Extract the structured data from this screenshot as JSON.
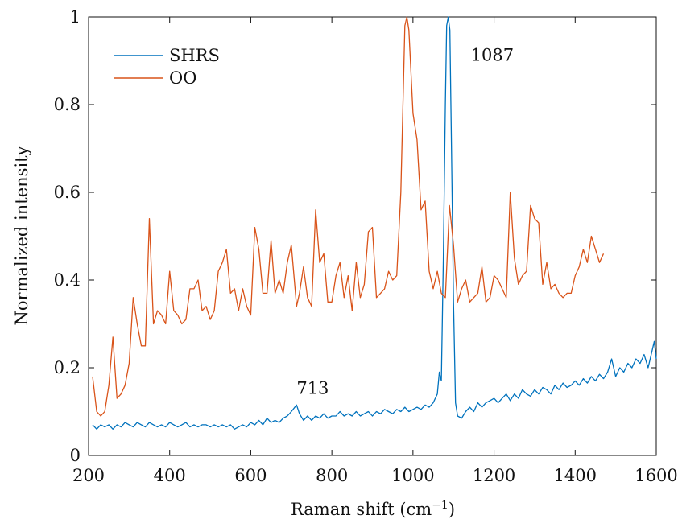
{
  "chart_data": {
    "type": "line",
    "xlabel": "Raman shift (cm",
    "xlabel_sup": "−1",
    "xlabel_close": ")",
    "ylabel": "Normalized intensity",
    "xlim": [
      200,
      1600
    ],
    "ylim": [
      0,
      1
    ],
    "xticks": [
      200,
      400,
      600,
      800,
      1000,
      1200,
      1400,
      1600
    ],
    "yticks": [
      0,
      0.2,
      0.4,
      0.6,
      0.8,
      1
    ],
    "xtick_labels": [
      "200",
      "400",
      "600",
      "800",
      "1000",
      "1200",
      "1400",
      "1600"
    ],
    "ytick_labels": [
      "0",
      "0.2",
      "0.4",
      "0.6",
      "0.8",
      "1"
    ],
    "grid": false,
    "legend_position": "top-left",
    "annotations": [
      {
        "text": "713",
        "x": 713,
        "y": 0.14
      },
      {
        "text": "1087",
        "x": 1087,
        "y": 0.9
      }
    ],
    "series": [
      {
        "name": "SHRS",
        "color": "#0072BD",
        "points": [
          [
            210,
            0.07
          ],
          [
            220,
            0.06
          ],
          [
            230,
            0.07
          ],
          [
            240,
            0.065
          ],
          [
            250,
            0.07
          ],
          [
            260,
            0.06
          ],
          [
            270,
            0.07
          ],
          [
            280,
            0.065
          ],
          [
            290,
            0.075
          ],
          [
            300,
            0.07
          ],
          [
            310,
            0.065
          ],
          [
            320,
            0.075
          ],
          [
            330,
            0.07
          ],
          [
            340,
            0.065
          ],
          [
            350,
            0.075
          ],
          [
            360,
            0.07
          ],
          [
            370,
            0.065
          ],
          [
            380,
            0.07
          ],
          [
            390,
            0.065
          ],
          [
            400,
            0.075
          ],
          [
            410,
            0.07
          ],
          [
            420,
            0.065
          ],
          [
            430,
            0.07
          ],
          [
            440,
            0.075
          ],
          [
            450,
            0.065
          ],
          [
            460,
            0.07
          ],
          [
            470,
            0.065
          ],
          [
            480,
            0.07
          ],
          [
            490,
            0.07
          ],
          [
            500,
            0.065
          ],
          [
            510,
            0.07
          ],
          [
            520,
            0.065
          ],
          [
            530,
            0.07
          ],
          [
            540,
            0.065
          ],
          [
            550,
            0.07
          ],
          [
            560,
            0.06
          ],
          [
            570,
            0.065
          ],
          [
            580,
            0.07
          ],
          [
            590,
            0.065
          ],
          [
            600,
            0.075
          ],
          [
            610,
            0.07
          ],
          [
            620,
            0.08
          ],
          [
            630,
            0.07
          ],
          [
            640,
            0.085
          ],
          [
            650,
            0.075
          ],
          [
            660,
            0.08
          ],
          [
            670,
            0.075
          ],
          [
            680,
            0.085
          ],
          [
            690,
            0.09
          ],
          [
            700,
            0.1
          ],
          [
            713,
            0.115
          ],
          [
            720,
            0.095
          ],
          [
            730,
            0.08
          ],
          [
            740,
            0.09
          ],
          [
            750,
            0.08
          ],
          [
            760,
            0.09
          ],
          [
            770,
            0.085
          ],
          [
            780,
            0.095
          ],
          [
            790,
            0.085
          ],
          [
            800,
            0.09
          ],
          [
            810,
            0.09
          ],
          [
            820,
            0.1
          ],
          [
            830,
            0.09
          ],
          [
            840,
            0.095
          ],
          [
            850,
            0.09
          ],
          [
            860,
            0.1
          ],
          [
            870,
            0.09
          ],
          [
            880,
            0.095
          ],
          [
            890,
            0.1
          ],
          [
            900,
            0.09
          ],
          [
            910,
            0.1
          ],
          [
            920,
            0.095
          ],
          [
            930,
            0.105
          ],
          [
            940,
            0.1
          ],
          [
            950,
            0.095
          ],
          [
            960,
            0.105
          ],
          [
            970,
            0.1
          ],
          [
            980,
            0.11
          ],
          [
            990,
            0.1
          ],
          [
            1000,
            0.105
          ],
          [
            1010,
            0.11
          ],
          [
            1020,
            0.105
          ],
          [
            1030,
            0.115
          ],
          [
            1040,
            0.11
          ],
          [
            1050,
            0.12
          ],
          [
            1060,
            0.14
          ],
          [
            1065,
            0.19
          ],
          [
            1070,
            0.17
          ],
          [
            1075,
            0.45
          ],
          [
            1080,
            0.8
          ],
          [
            1083,
            0.98
          ],
          [
            1087,
            1.0
          ],
          [
            1091,
            0.97
          ],
          [
            1095,
            0.7
          ],
          [
            1100,
            0.35
          ],
          [
            1105,
            0.12
          ],
          [
            1110,
            0.09
          ],
          [
            1120,
            0.085
          ],
          [
            1130,
            0.1
          ],
          [
            1140,
            0.11
          ],
          [
            1150,
            0.1
          ],
          [
            1160,
            0.12
          ],
          [
            1170,
            0.11
          ],
          [
            1180,
            0.12
          ],
          [
            1190,
            0.125
          ],
          [
            1200,
            0.13
          ],
          [
            1210,
            0.12
          ],
          [
            1220,
            0.13
          ],
          [
            1230,
            0.14
          ],
          [
            1240,
            0.125
          ],
          [
            1250,
            0.14
          ],
          [
            1260,
            0.13
          ],
          [
            1270,
            0.15
          ],
          [
            1280,
            0.14
          ],
          [
            1290,
            0.135
          ],
          [
            1300,
            0.15
          ],
          [
            1310,
            0.14
          ],
          [
            1320,
            0.155
          ],
          [
            1330,
            0.15
          ],
          [
            1340,
            0.14
          ],
          [
            1350,
            0.16
          ],
          [
            1360,
            0.15
          ],
          [
            1370,
            0.165
          ],
          [
            1380,
            0.155
          ],
          [
            1390,
            0.16
          ],
          [
            1400,
            0.17
          ],
          [
            1410,
            0.16
          ],
          [
            1420,
            0.175
          ],
          [
            1430,
            0.165
          ],
          [
            1440,
            0.18
          ],
          [
            1450,
            0.17
          ],
          [
            1460,
            0.185
          ],
          [
            1470,
            0.175
          ],
          [
            1480,
            0.19
          ],
          [
            1490,
            0.22
          ],
          [
            1500,
            0.18
          ],
          [
            1510,
            0.2
          ],
          [
            1520,
            0.19
          ],
          [
            1530,
            0.21
          ],
          [
            1540,
            0.2
          ],
          [
            1550,
            0.22
          ],
          [
            1560,
            0.21
          ],
          [
            1570,
            0.23
          ],
          [
            1580,
            0.2
          ],
          [
            1590,
            0.24
          ],
          [
            1595,
            0.26
          ],
          [
            1600,
            0.22
          ]
        ]
      },
      {
        "name": "OO",
        "color": "#D95319",
        "points": [
          [
            210,
            0.18
          ],
          [
            220,
            0.1
          ],
          [
            230,
            0.09
          ],
          [
            240,
            0.1
          ],
          [
            250,
            0.16
          ],
          [
            260,
            0.27
          ],
          [
            270,
            0.13
          ],
          [
            280,
            0.14
          ],
          [
            290,
            0.16
          ],
          [
            300,
            0.21
          ],
          [
            310,
            0.36
          ],
          [
            320,
            0.3
          ],
          [
            330,
            0.25
          ],
          [
            340,
            0.25
          ],
          [
            350,
            0.54
          ],
          [
            360,
            0.3
          ],
          [
            370,
            0.33
          ],
          [
            380,
            0.32
          ],
          [
            390,
            0.3
          ],
          [
            400,
            0.42
          ],
          [
            410,
            0.33
          ],
          [
            420,
            0.32
          ],
          [
            430,
            0.3
          ],
          [
            440,
            0.31
          ],
          [
            450,
            0.38
          ],
          [
            460,
            0.38
          ],
          [
            470,
            0.4
          ],
          [
            480,
            0.33
          ],
          [
            490,
            0.34
          ],
          [
            500,
            0.31
          ],
          [
            510,
            0.33
          ],
          [
            520,
            0.42
          ],
          [
            530,
            0.44
          ],
          [
            540,
            0.47
          ],
          [
            550,
            0.37
          ],
          [
            560,
            0.38
          ],
          [
            570,
            0.33
          ],
          [
            580,
            0.38
          ],
          [
            590,
            0.34
          ],
          [
            600,
            0.32
          ],
          [
            610,
            0.52
          ],
          [
            620,
            0.47
          ],
          [
            630,
            0.37
          ],
          [
            640,
            0.37
          ],
          [
            650,
            0.49
          ],
          [
            660,
            0.37
          ],
          [
            670,
            0.4
          ],
          [
            680,
            0.37
          ],
          [
            690,
            0.44
          ],
          [
            700,
            0.48
          ],
          [
            713,
            0.34
          ],
          [
            720,
            0.37
          ],
          [
            730,
            0.43
          ],
          [
            740,
            0.36
          ],
          [
            750,
            0.34
          ],
          [
            760,
            0.56
          ],
          [
            770,
            0.44
          ],
          [
            780,
            0.46
          ],
          [
            790,
            0.35
          ],
          [
            800,
            0.35
          ],
          [
            810,
            0.41
          ],
          [
            820,
            0.44
          ],
          [
            830,
            0.36
          ],
          [
            840,
            0.41
          ],
          [
            850,
            0.33
          ],
          [
            860,
            0.44
          ],
          [
            870,
            0.36
          ],
          [
            880,
            0.39
          ],
          [
            890,
            0.51
          ],
          [
            900,
            0.52
          ],
          [
            910,
            0.36
          ],
          [
            920,
            0.37
          ],
          [
            930,
            0.38
          ],
          [
            940,
            0.42
          ],
          [
            950,
            0.4
          ],
          [
            960,
            0.41
          ],
          [
            970,
            0.6
          ],
          [
            980,
            0.98
          ],
          [
            985,
            1.0
          ],
          [
            990,
            0.97
          ],
          [
            1000,
            0.78
          ],
          [
            1010,
            0.72
          ],
          [
            1020,
            0.56
          ],
          [
            1030,
            0.58
          ],
          [
            1040,
            0.42
          ],
          [
            1050,
            0.38
          ],
          [
            1060,
            0.42
          ],
          [
            1070,
            0.37
          ],
          [
            1080,
            0.36
          ],
          [
            1090,
            0.57
          ],
          [
            1100,
            0.48
          ],
          [
            1110,
            0.35
          ],
          [
            1120,
            0.38
          ],
          [
            1130,
            0.4
          ],
          [
            1140,
            0.35
          ],
          [
            1150,
            0.36
          ],
          [
            1160,
            0.37
          ],
          [
            1170,
            0.43
          ],
          [
            1180,
            0.35
          ],
          [
            1190,
            0.36
          ],
          [
            1200,
            0.41
          ],
          [
            1210,
            0.4
          ],
          [
            1220,
            0.38
          ],
          [
            1230,
            0.36
          ],
          [
            1240,
            0.6
          ],
          [
            1250,
            0.45
          ],
          [
            1260,
            0.39
          ],
          [
            1270,
            0.41
          ],
          [
            1280,
            0.42
          ],
          [
            1290,
            0.57
          ],
          [
            1300,
            0.54
          ],
          [
            1310,
            0.53
          ],
          [
            1320,
            0.39
          ],
          [
            1330,
            0.44
          ],
          [
            1340,
            0.38
          ],
          [
            1350,
            0.39
          ],
          [
            1360,
            0.37
          ],
          [
            1370,
            0.36
          ],
          [
            1380,
            0.37
          ],
          [
            1390,
            0.37
          ],
          [
            1400,
            0.41
          ],
          [
            1410,
            0.43
          ],
          [
            1420,
            0.47
          ],
          [
            1430,
            0.44
          ],
          [
            1440,
            0.5
          ],
          [
            1450,
            0.47
          ],
          [
            1460,
            0.44
          ],
          [
            1470,
            0.46
          ]
        ]
      }
    ]
  }
}
